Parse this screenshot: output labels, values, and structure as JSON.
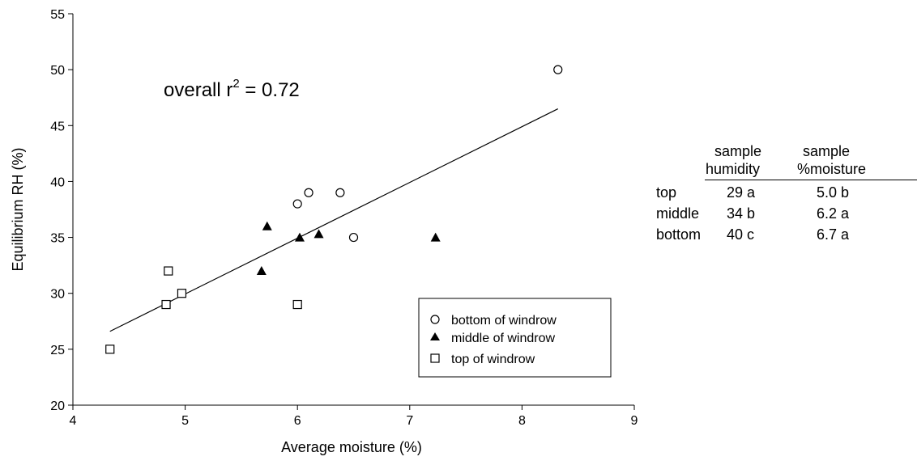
{
  "chart_data": {
    "type": "scatter",
    "xlabel": "Average moisture (%)",
    "ylabel": "Equilibrium RH (%)",
    "xlim": [
      4,
      9
    ],
    "ylim": [
      20,
      55
    ],
    "xticks": [
      "4",
      "5",
      "6",
      "7",
      "8",
      "9"
    ],
    "yticks": [
      "20",
      "25",
      "30",
      "35",
      "40",
      "45",
      "50",
      "55"
    ],
    "grid": false,
    "legend_position": "bottom-right",
    "annotation": {
      "text": "overall r",
      "superscript": "2",
      "suffix": " = 0.72"
    },
    "series": [
      {
        "name": "bottom of windrow",
        "marker": "open-circle",
        "points": [
          [
            8.32,
            50
          ],
          [
            6.0,
            38
          ],
          [
            6.1,
            39
          ],
          [
            6.38,
            39
          ],
          [
            6.5,
            35
          ]
        ]
      },
      {
        "name": "middle of windrow",
        "marker": "filled-triangle",
        "points": [
          [
            5.73,
            36
          ],
          [
            6.02,
            35
          ],
          [
            6.19,
            35.3
          ],
          [
            5.68,
            32
          ],
          [
            7.23,
            35
          ]
        ]
      },
      {
        "name": "top of windrow",
        "marker": "open-square",
        "points": [
          [
            4.85,
            32
          ],
          [
            4.83,
            29
          ],
          [
            4.97,
            30
          ],
          [
            6.0,
            29
          ],
          [
            4.33,
            25
          ]
        ]
      }
    ],
    "trendline": {
      "x": [
        4.33,
        8.32
      ],
      "y": [
        26.6,
        46.5
      ]
    }
  },
  "table": {
    "headers": [
      {
        "line1": "sample",
        "line2": "humidity"
      },
      {
        "line1": "sample",
        "line2": "%moisture"
      }
    ],
    "rows": [
      {
        "label": "top",
        "humidity": "29 a",
        "moisture": "5.0 b"
      },
      {
        "label": "middle",
        "humidity": "34 b",
        "moisture": "6.2 a"
      },
      {
        "label": "bottom",
        "humidity": "40 c",
        "moisture": "6.7 a"
      }
    ]
  }
}
